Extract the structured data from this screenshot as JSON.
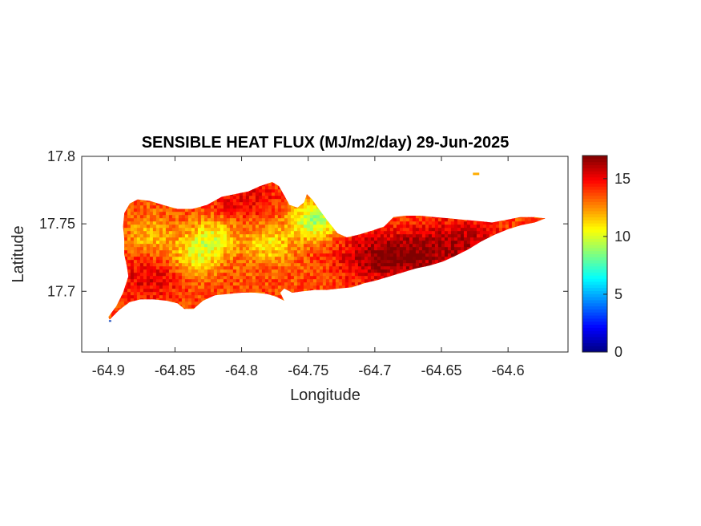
{
  "chart_data": {
    "type": "heatmap",
    "title": "SENSIBLE HEAT FLUX (MJ/m2/day) 29-Jun-2025",
    "xlabel": "Longitude",
    "ylabel": "Latitude",
    "xlim": [
      -64.92,
      -64.555
    ],
    "ylim": [
      17.655,
      17.8
    ],
    "xticks": [
      -64.9,
      -64.85,
      -64.8,
      -64.75,
      -64.7,
      -64.65,
      -64.6
    ],
    "xtick_labels": [
      "-64.9",
      "-64.85",
      "-64.8",
      "-64.75",
      "-64.7",
      "-64.65",
      "-64.6"
    ],
    "yticks": [
      17.7,
      17.75,
      17.8
    ],
    "ytick_labels": [
      "17.7",
      "17.75",
      "17.8"
    ],
    "colorbar": {
      "colormap": "jet",
      "clim": [
        0,
        17
      ],
      "ticks": [
        0,
        5,
        10,
        15
      ],
      "tick_labels": [
        "0",
        "5",
        "10",
        "15"
      ]
    },
    "region_outline": [
      [
        -64.899,
        17.679
      ],
      [
        -64.892,
        17.686
      ],
      [
        -64.884,
        17.692
      ],
      [
        -64.876,
        17.694
      ],
      [
        -64.866,
        17.694
      ],
      [
        -64.856,
        17.693
      ],
      [
        -64.848,
        17.691
      ],
      [
        -64.843,
        17.687
      ],
      [
        -64.836,
        17.687
      ],
      [
        -64.829,
        17.693
      ],
      [
        -64.82,
        17.697
      ],
      [
        -64.81,
        17.698
      ],
      [
        -64.8,
        17.699
      ],
      [
        -64.79,
        17.699
      ],
      [
        -64.781,
        17.698
      ],
      [
        -64.774,
        17.696
      ],
      [
        -64.768,
        17.693
      ],
      [
        -64.771,
        17.699
      ],
      [
        -64.768,
        17.702
      ],
      [
        -64.762,
        17.699
      ],
      [
        -64.754,
        17.7
      ],
      [
        -64.745,
        17.701
      ],
      [
        -64.736,
        17.701
      ],
      [
        -64.727,
        17.702
      ],
      [
        -64.717,
        17.703
      ],
      [
        -64.708,
        17.706
      ],
      [
        -64.699,
        17.708
      ],
      [
        -64.689,
        17.711
      ],
      [
        -64.679,
        17.714
      ],
      [
        -64.669,
        17.717
      ],
      [
        -64.659,
        17.719
      ],
      [
        -64.649,
        17.722
      ],
      [
        -64.64,
        17.726
      ],
      [
        -64.63,
        17.731
      ],
      [
        -64.62,
        17.737
      ],
      [
        -64.61,
        17.742
      ],
      [
        -64.6,
        17.746
      ],
      [
        -64.59,
        17.749
      ],
      [
        -64.58,
        17.751
      ],
      [
        -64.572,
        17.754
      ],
      [
        -64.58,
        17.755
      ],
      [
        -64.591,
        17.755
      ],
      [
        -64.601,
        17.753
      ],
      [
        -64.612,
        17.751
      ],
      [
        -64.622,
        17.752
      ],
      [
        -64.633,
        17.753
      ],
      [
        -64.644,
        17.754
      ],
      [
        -64.655,
        17.755
      ],
      [
        -64.666,
        17.756
      ],
      [
        -64.677,
        17.756
      ],
      [
        -64.686,
        17.755
      ],
      [
        -64.693,
        17.748
      ],
      [
        -64.702,
        17.745
      ],
      [
        -64.712,
        17.742
      ],
      [
        -64.721,
        17.74
      ],
      [
        -64.728,
        17.743
      ],
      [
        -64.736,
        17.753
      ],
      [
        -64.742,
        17.761
      ],
      [
        -64.747,
        17.768
      ],
      [
        -64.751,
        17.772
      ],
      [
        -64.753,
        17.766
      ],
      [
        -64.758,
        17.762
      ],
      [
        -64.764,
        17.764
      ],
      [
        -64.768,
        17.771
      ],
      [
        -64.772,
        17.778
      ],
      [
        -64.777,
        17.781
      ],
      [
        -64.786,
        17.778
      ],
      [
        -64.795,
        17.774
      ],
      [
        -64.805,
        17.772
      ],
      [
        -64.815,
        17.77
      ],
      [
        -64.826,
        17.764
      ],
      [
        -64.837,
        17.761
      ],
      [
        -64.848,
        17.761
      ],
      [
        -64.859,
        17.764
      ],
      [
        -64.869,
        17.767
      ],
      [
        -64.878,
        17.768
      ],
      [
        -64.884,
        17.765
      ],
      [
        -64.888,
        17.758
      ],
      [
        -64.889,
        17.748
      ],
      [
        -64.888,
        17.738
      ],
      [
        -64.888,
        17.727
      ],
      [
        -64.886,
        17.718
      ],
      [
        -64.885,
        17.711
      ],
      [
        -64.889,
        17.699
      ],
      [
        -64.894,
        17.689
      ],
      [
        -64.9,
        17.681
      ]
    ],
    "islet": [
      -64.624,
      17.787
    ],
    "value_field": {
      "background": 13.6,
      "hot_zones": [
        {
          "lon": -64.7,
          "lat": 17.725,
          "value": 16.3
        },
        {
          "lon": -64.665,
          "lat": 17.728,
          "value": 16.0
        },
        {
          "lon": -64.63,
          "lat": 17.738,
          "value": 15.6
        },
        {
          "lon": -64.87,
          "lat": 17.71,
          "value": 15.3
        },
        {
          "lon": -64.8,
          "lat": 17.772,
          "value": 15.2
        }
      ],
      "cool_zones": [
        {
          "lon": -64.745,
          "lat": 17.752,
          "value": 9.0
        },
        {
          "lon": -64.822,
          "lat": 17.74,
          "value": 10.6
        },
        {
          "lon": -64.835,
          "lat": 17.725,
          "value": 10.9
        },
        {
          "lon": -64.78,
          "lat": 17.735,
          "value": 11.0
        },
        {
          "lon": -64.868,
          "lat": 17.74,
          "value": 11.6
        }
      ],
      "range": [
        6,
        17
      ]
    }
  }
}
